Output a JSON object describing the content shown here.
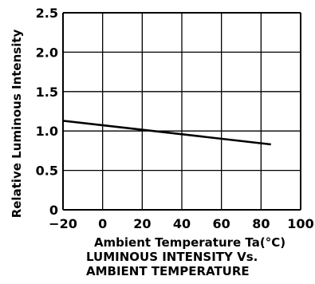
{
  "chart_data": {
    "type": "line",
    "xlabel": "Ambient Temperature Ta(°C)",
    "ylabel": "Relative Luminous Intensity",
    "caption": [
      "LUMINOUS INTENSITY Vs.",
      "AMBIENT TEMPERATURE"
    ],
    "xlim": [
      -20,
      100
    ],
    "ylim": [
      0,
      2.5
    ],
    "x_ticks": [
      "−20",
      "0",
      "20",
      "40",
      "60",
      "80",
      "100"
    ],
    "y_ticks": [
      "0",
      "0.5",
      "1.0",
      "1.5",
      "2.0",
      "2.5"
    ],
    "x_tick_values": [
      -20,
      0,
      20,
      40,
      60,
      80,
      100
    ],
    "y_tick_values": [
      0,
      0.5,
      1.0,
      1.5,
      2.0,
      2.5
    ],
    "grid": true,
    "series": [
      {
        "x": [
          -20,
          85
        ],
        "y": [
          1.13,
          0.83
        ]
      }
    ],
    "colors": {
      "line": "#000000",
      "grid": "#000000"
    }
  }
}
